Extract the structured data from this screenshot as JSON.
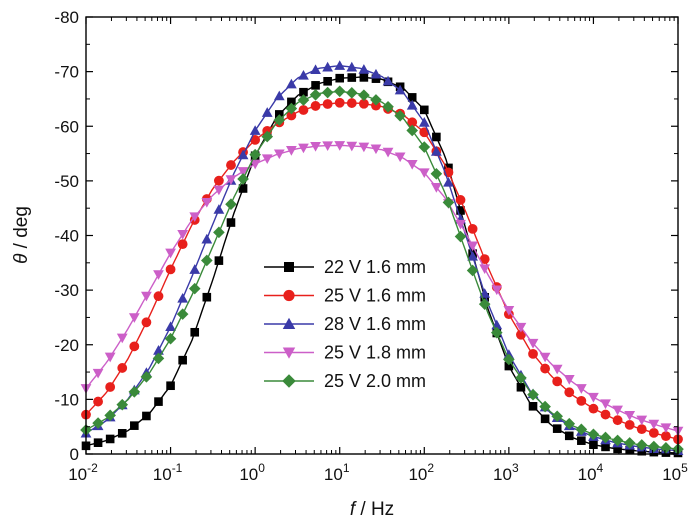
{
  "chart_data": {
    "type": "line",
    "title": "",
    "xlabel_italic": "f",
    "xlabel_rest": " / Hz",
    "ylabel_italic": "θ",
    "ylabel_rest": " / deg",
    "x_scale": "log",
    "xlim": [
      0.01,
      100000
    ],
    "ylim": [
      0,
      -80
    ],
    "x_tick_base": "10",
    "x_tick_exponents": [
      "-2",
      "-1",
      "0",
      "1",
      "2",
      "3",
      "4",
      "5"
    ],
    "y_tick_labels": [
      "0",
      "-10",
      "-20",
      "-30",
      "-40",
      "-50",
      "-60",
      "-70",
      "-80"
    ],
    "y_tick_values": [
      0,
      -10,
      -20,
      -30,
      -40,
      -50,
      -60,
      -70,
      -80
    ],
    "grid": false,
    "legend_position": "center-left",
    "series": [
      {
        "name": "22 V 1.6 mm",
        "color": "#000000",
        "marker": "square",
        "x": [
          0.01,
          0.0178,
          0.0316,
          0.0562,
          0.1,
          0.178,
          0.316,
          0.562,
          1,
          1.78,
          3.16,
          5.62,
          10,
          17.8,
          31.6,
          56.2,
          100,
          178,
          316,
          562,
          1000,
          1780,
          3160,
          5620,
          10000,
          17800,
          31600,
          56200,
          100000
        ],
        "y": [
          -1.5,
          -2.5,
          -4.3,
          -7.4,
          -12.5,
          -20.7,
          -31.9,
          -44.1,
          -54.6,
          -61.6,
          -65.6,
          -67.8,
          -68.8,
          -69.0,
          -68.6,
          -67.0,
          -63.0,
          -54.3,
          -40.7,
          -26.7,
          -16.1,
          -9.3,
          -5.3,
          -3.0,
          -1.7,
          -1.0,
          -0.6,
          -0.3,
          -0.2
        ]
      },
      {
        "name": "25 V 1.6 mm",
        "color": "#e8201c",
        "marker": "circle",
        "x": [
          0.01,
          0.0178,
          0.0316,
          0.0562,
          0.1,
          0.178,
          0.316,
          0.562,
          1,
          1.78,
          3.16,
          5.62,
          10,
          17.8,
          31.6,
          56.2,
          100,
          178,
          316,
          562,
          1000,
          1780,
          3160,
          5620,
          10000,
          17800,
          31600,
          56200,
          100000
        ],
        "y": [
          -7.2,
          -11.4,
          -17.5,
          -25.2,
          -33.8,
          -41.9,
          -48.6,
          -53.6,
          -57.5,
          -60.4,
          -62.6,
          -63.9,
          -64.3,
          -64.2,
          -63.6,
          -62.1,
          -58.9,
          -52.8,
          -44.0,
          -34.3,
          -25.6,
          -19.0,
          -14.3,
          -10.8,
          -8.3,
          -6.4,
          -4.9,
          -3.7,
          -2.7
        ]
      },
      {
        "name": "28 V 1.6 mm",
        "color": "#3a3aa8",
        "marker": "triangle-up",
        "x": [
          0.01,
          0.0178,
          0.0316,
          0.0562,
          0.1,
          0.178,
          0.316,
          0.562,
          1,
          1.78,
          3.16,
          5.62,
          10,
          17.8,
          31.6,
          56.2,
          100,
          178,
          316,
          562,
          1000,
          1780,
          3160,
          5620,
          10000,
          17800,
          31600,
          56200,
          100000
        ],
        "y": [
          -3.8,
          -6.2,
          -10.1,
          -15.7,
          -23.3,
          -32.4,
          -42.1,
          -51.4,
          -59.2,
          -65.0,
          -68.8,
          -70.6,
          -71.1,
          -70.6,
          -69.1,
          -66.2,
          -60.7,
          -51.4,
          -39.6,
          -27.7,
          -18.2,
          -11.6,
          -7.4,
          -4.8,
          -3.2,
          -2.1,
          -1.4,
          -0.9,
          -0.6
        ]
      },
      {
        "name": "25 V 1.8 mm",
        "color": "#cc5fc8",
        "marker": "triangle-down",
        "x": [
          0.01,
          0.0178,
          0.0316,
          0.0562,
          0.1,
          0.178,
          0.316,
          0.562,
          1,
          1.78,
          3.16,
          5.62,
          10,
          17.8,
          31.6,
          56.2,
          100,
          178,
          316,
          562,
          1000,
          1780,
          3160,
          5620,
          10000,
          17800,
          31600,
          56200,
          100000
        ],
        "y": [
          -12.0,
          -16.9,
          -23.0,
          -29.9,
          -36.8,
          -42.8,
          -47.4,
          -50.7,
          -53.1,
          -54.8,
          -55.9,
          -56.4,
          -56.5,
          -56.3,
          -55.7,
          -54.2,
          -51.5,
          -46.8,
          -40.2,
          -32.9,
          -26.3,
          -20.9,
          -16.5,
          -13.2,
          -10.4,
          -8.3,
          -6.6,
          -5.3,
          -4.2
        ]
      },
      {
        "name": "25 V 2.0 mm",
        "color": "#3a8a3a",
        "marker": "diamond",
        "x": [
          0.01,
          0.0178,
          0.0316,
          0.0562,
          0.1,
          0.178,
          0.316,
          0.562,
          1,
          1.78,
          3.16,
          5.62,
          10,
          17.8,
          31.6,
          56.2,
          100,
          178,
          316,
          562,
          1000,
          1780,
          3160,
          5620,
          10000,
          17800,
          31600,
          56200,
          100000
        ],
        "y": [
          -4.4,
          -6.6,
          -10.0,
          -14.8,
          -21.1,
          -29.0,
          -38.0,
          -47.0,
          -54.8,
          -60.6,
          -64.3,
          -66.0,
          -66.4,
          -65.9,
          -64.4,
          -61.5,
          -56.2,
          -47.6,
          -36.7,
          -25.9,
          -17.3,
          -11.4,
          -7.6,
          -5.2,
          -3.6,
          -2.6,
          -1.8,
          -1.3,
          -0.9
        ]
      }
    ]
  }
}
